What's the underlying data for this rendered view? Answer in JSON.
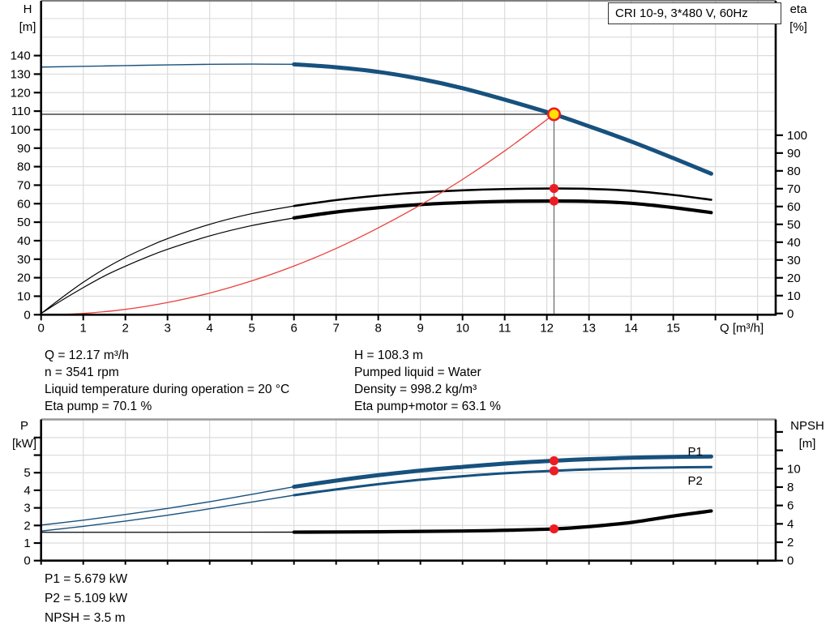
{
  "title_box": {
    "label": "CRI 10-9, 3*480 V, 60Hz"
  },
  "colors": {
    "blue": "#17517e",
    "black": "#000000",
    "red_curve": "#e8423c",
    "red_dot": "#ed1c24",
    "yellow": "#ffe105",
    "grid": "#dcdcdc",
    "axis": "#000000",
    "ref_line": "#222222",
    "drop_line": "#666666"
  },
  "info_top": {
    "left": [
      "Q = 12.17 m³/h",
      "n = 3541 rpm",
      "Liquid temperature during operation = 20 °C",
      "Eta pump = 70.1 %"
    ],
    "right": [
      "H = 108.3 m",
      "Pumped liquid = Water",
      "Density = 998.2 kg/m³",
      "Eta pump+motor = 63.1 %"
    ]
  },
  "info_bottom": [
    "P1 = 5.679 kW",
    "P2 = 5.109 kW",
    "NPSH = 3.5 m"
  ],
  "chart_data": [
    {
      "id": "top",
      "type": "line",
      "title": "CRI 10-9, 3*480 V, 60Hz",
      "x_axis": {
        "label": "Q [m³/h]",
        "min": 0,
        "max": 17.43,
        "tick_labels": [
          0,
          1,
          2,
          3,
          4,
          5,
          6,
          7,
          8,
          9,
          10,
          11,
          12,
          13,
          14,
          15
        ],
        "tick_marks": [
          0,
          1,
          2,
          3,
          4,
          5,
          6,
          7,
          8,
          9,
          10,
          11,
          12,
          13,
          14,
          15,
          16,
          17
        ],
        "grid": [
          1,
          2,
          3,
          4,
          5,
          6,
          7,
          8,
          9,
          10,
          11,
          12,
          13,
          14,
          15,
          16,
          17
        ]
      },
      "y_left": {
        "label": "H",
        "unit": "[m]",
        "min": 0,
        "max": 169.6,
        "tick_labels": [
          0,
          10,
          20,
          30,
          40,
          50,
          60,
          70,
          80,
          90,
          100,
          110,
          120,
          130,
          140
        ],
        "tick_marks": [
          0,
          10,
          20,
          30,
          40,
          50,
          60,
          70,
          80,
          90,
          100,
          110,
          120,
          130,
          140
        ],
        "grid": [
          10,
          20,
          30,
          40,
          50,
          60,
          70,
          80,
          90,
          100,
          110,
          120,
          130,
          140,
          150,
          160
        ]
      },
      "y_right": {
        "label": "eta",
        "unit": "[%]",
        "min": -0.7,
        "max": 175.4,
        "tick_labels": [
          0,
          10,
          20,
          30,
          40,
          50,
          60,
          70,
          80,
          90,
          100
        ],
        "tick_marks": [
          0,
          10,
          20,
          30,
          40,
          50,
          60,
          70,
          80,
          90,
          100
        ]
      },
      "series": [
        {
          "name": "head-q-thin",
          "axis": "left",
          "color": "blue",
          "width": 1.4,
          "points": [
            [
              0,
              133.8
            ],
            [
              1,
              134.2
            ],
            [
              2,
              134.6
            ],
            [
              3,
              135.0
            ],
            [
              4,
              135.3
            ],
            [
              5,
              135.4
            ],
            [
              6,
              135.3
            ]
          ]
        },
        {
          "name": "head-q",
          "axis": "left",
          "color": "blue",
          "width": 5,
          "points": [
            [
              6,
              135.3
            ],
            [
              7,
              133.7
            ],
            [
              8,
              131.2
            ],
            [
              9,
              127.4
            ],
            [
              10,
              122.4
            ],
            [
              11,
              116.2
            ],
            [
              12.17,
              108.3
            ],
            [
              13,
              101.8
            ],
            [
              14,
              93.6
            ],
            [
              15,
              84.6
            ],
            [
              15.9,
              76.2
            ]
          ]
        },
        {
          "name": "eta-pump-thin",
          "axis": "right",
          "color": "black",
          "width": 1.2,
          "points": [
            [
              0,
              0
            ],
            [
              0.5,
              9
            ],
            [
              1,
              17.5
            ],
            [
              1.5,
              25
            ],
            [
              2,
              31.5
            ],
            [
              2.5,
              37
            ],
            [
              3,
              42
            ],
            [
              4,
              50
            ],
            [
              5,
              56
            ],
            [
              6,
              60.3
            ]
          ]
        },
        {
          "name": "eta-pump",
          "axis": "right",
          "color": "black",
          "width": 2.6,
          "points": [
            [
              6,
              60.3
            ],
            [
              7,
              63.6
            ],
            [
              8,
              66.1
            ],
            [
              9,
              67.9
            ],
            [
              10,
              69.1
            ],
            [
              11,
              69.8
            ],
            [
              12.17,
              70.1
            ],
            [
              13,
              69.9
            ],
            [
              14,
              68.8
            ],
            [
              15,
              66.5
            ],
            [
              15.9,
              63.8
            ]
          ]
        },
        {
          "name": "eta-pump-motor-thin",
          "axis": "right",
          "color": "black",
          "width": 1.2,
          "points": [
            [
              0,
              0
            ],
            [
              0.5,
              7.5
            ],
            [
              1,
              14.5
            ],
            [
              1.5,
              21
            ],
            [
              2,
              26.5
            ],
            [
              2.5,
              31.5
            ],
            [
              3,
              36
            ],
            [
              4,
              43.5
            ],
            [
              5,
              49.3
            ],
            [
              6,
              53.6
            ]
          ]
        },
        {
          "name": "eta-pump-motor",
          "axis": "right",
          "color": "black",
          "width": 4.2,
          "points": [
            [
              6,
              53.6
            ],
            [
              7,
              56.9
            ],
            [
              8,
              59.3
            ],
            [
              9,
              61.1
            ],
            [
              10,
              62.2
            ],
            [
              11,
              62.9
            ],
            [
              12.17,
              63.1
            ],
            [
              13,
              62.9
            ],
            [
              14,
              61.8
            ],
            [
              15,
              59.4
            ],
            [
              15.9,
              56.6
            ]
          ]
        },
        {
          "name": "duty-parabola",
          "axis": "left",
          "color": "red_curve",
          "width": 1.3,
          "points": [
            [
              0.3,
              0.1
            ],
            [
              1,
              0.7
            ],
            [
              2,
              2.9
            ],
            [
              3,
              6.6
            ],
            [
              4,
              11.7
            ],
            [
              5,
              18.3
            ],
            [
              6,
              26.3
            ],
            [
              7,
              35.8
            ],
            [
              8,
              46.9
            ],
            [
              9,
              59.3
            ],
            [
              10,
              73.1
            ],
            [
              11,
              88.5
            ],
            [
              12.17,
              108.3
            ]
          ]
        }
      ],
      "ref_lines": [
        {
          "name": "duty-head-line",
          "kind": "h",
          "axis": "left",
          "v": 108.3,
          "q1": 0,
          "q2": 12.17
        },
        {
          "name": "duty-flow-line",
          "kind": "v",
          "axis": "left",
          "q": 12.17,
          "v1": 0,
          "v2": 108.3
        }
      ],
      "markers": [
        {
          "name": "duty-point",
          "kind": "duty",
          "axis": "left",
          "q": 12.17,
          "v": 108.3
        },
        {
          "name": "eta-pump-point",
          "kind": "dot",
          "axis": "right",
          "q": 12.17,
          "v": 70.1
        },
        {
          "name": "eta-pump-motor-point",
          "kind": "dot",
          "axis": "right",
          "q": 12.17,
          "v": 63.1
        }
      ],
      "labels": []
    },
    {
      "id": "bottom",
      "type": "line",
      "title": "",
      "x_axis": {
        "label": "",
        "min": 0,
        "max": 17.43,
        "tick_labels": [],
        "tick_marks": [
          0,
          1,
          2,
          3,
          4,
          5,
          6,
          7,
          8,
          9,
          10,
          11,
          12,
          13,
          14,
          15,
          16,
          17
        ],
        "grid": [
          1,
          2,
          3,
          4,
          5,
          6,
          7,
          8,
          9,
          10,
          11,
          12,
          13,
          14,
          15,
          16,
          17
        ]
      },
      "y_left": {
        "label": "P",
        "unit": "[kW]",
        "min": 0,
        "max": 8.03,
        "tick_labels": [
          0,
          1,
          2,
          3,
          4,
          5
        ],
        "tick_marks": [
          0,
          1,
          2,
          3,
          4,
          5,
          6,
          7
        ],
        "grid": [
          1,
          2,
          3,
          4,
          5,
          6,
          7
        ]
      },
      "y_right": {
        "label": "NPSH",
        "unit": "[m]",
        "min": 0,
        "max": 15.36,
        "tick_labels": [
          0,
          2,
          4,
          6,
          8,
          10
        ],
        "tick_marks": [
          0,
          2,
          4,
          6,
          8,
          10,
          12,
          14
        ]
      },
      "series": [
        {
          "name": "p1-thin",
          "axis": "left",
          "color": "blue",
          "width": 1.4,
          "points": [
            [
              0,
              2.02
            ],
            [
              1,
              2.3
            ],
            [
              2,
              2.62
            ],
            [
              3,
              2.97
            ],
            [
              4,
              3.35
            ],
            [
              5,
              3.77
            ],
            [
              6,
              4.2
            ]
          ]
        },
        {
          "name": "p1",
          "axis": "left",
          "color": "blue",
          "width": 5,
          "points": [
            [
              6,
              4.2
            ],
            [
              7,
              4.55
            ],
            [
              8,
              4.86
            ],
            [
              9,
              5.12
            ],
            [
              10,
              5.33
            ],
            [
              11,
              5.52
            ],
            [
              12.17,
              5.679
            ],
            [
              13,
              5.77
            ],
            [
              14,
              5.85
            ],
            [
              15,
              5.9
            ],
            [
              15.9,
              5.92
            ]
          ]
        },
        {
          "name": "p2-thin",
          "axis": "left",
          "color": "blue",
          "width": 1.4,
          "points": [
            [
              0,
              1.68
            ],
            [
              1,
              1.95
            ],
            [
              2,
              2.25
            ],
            [
              3,
              2.58
            ],
            [
              4,
              2.95
            ],
            [
              5,
              3.33
            ],
            [
              6,
              3.72
            ]
          ]
        },
        {
          "name": "p2",
          "axis": "left",
          "color": "blue",
          "width": 3,
          "points": [
            [
              6,
              3.72
            ],
            [
              7,
              4.05
            ],
            [
              8,
              4.35
            ],
            [
              9,
              4.6
            ],
            [
              10,
              4.8
            ],
            [
              11,
              4.97
            ],
            [
              12.17,
              5.109
            ],
            [
              13,
              5.19
            ],
            [
              14,
              5.26
            ],
            [
              15,
              5.3
            ],
            [
              15.9,
              5.32
            ]
          ]
        },
        {
          "name": "npsh-thin",
          "axis": "right",
          "color": "black",
          "width": 1.3,
          "points": [
            [
              0,
              3.08
            ],
            [
              2,
              3.08
            ],
            [
              4,
              3.09
            ],
            [
              6,
              3.1
            ]
          ]
        },
        {
          "name": "npsh",
          "axis": "right",
          "color": "black",
          "width": 4.2,
          "points": [
            [
              6,
              3.1
            ],
            [
              8,
              3.14
            ],
            [
              10,
              3.22
            ],
            [
              11,
              3.3
            ],
            [
              12.17,
              3.45
            ],
            [
              13,
              3.7
            ],
            [
              14,
              4.15
            ],
            [
              15,
              4.85
            ],
            [
              15.9,
              5.4
            ]
          ]
        }
      ],
      "ref_lines": [],
      "markers": [
        {
          "name": "p1-point",
          "kind": "dot",
          "axis": "left",
          "q": 12.17,
          "v": 5.679
        },
        {
          "name": "p2-point",
          "kind": "dot",
          "axis": "left",
          "q": 12.17,
          "v": 5.109
        },
        {
          "name": "npsh-point",
          "kind": "dot",
          "axis": "right",
          "q": 12.17,
          "v": 3.45
        }
      ],
      "labels": [
        {
          "text": "P1",
          "q": 15.52,
          "v": 6.2,
          "axis": "left"
        },
        {
          "text": "P2",
          "q": 15.52,
          "v": 4.55,
          "axis": "left"
        }
      ]
    }
  ]
}
